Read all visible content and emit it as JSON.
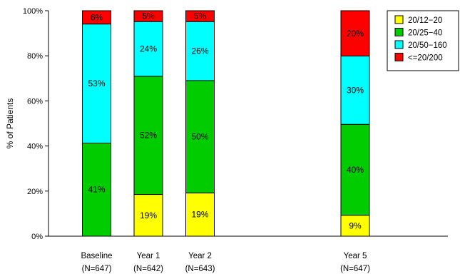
{
  "chart_data": {
    "type": "bar",
    "stacked": true,
    "ylabel": "% of Patients",
    "ylim": [
      0,
      100
    ],
    "y_ticks": [
      "0%",
      "20%",
      "40%",
      "60%",
      "80%",
      "100%"
    ],
    "grid": false,
    "legend_position": "top-right",
    "categories": [
      {
        "name": "Baseline",
        "sub": "(N=647)",
        "year": 0
      },
      {
        "name": "Year 1",
        "sub": "(N=642)",
        "year": 1
      },
      {
        "name": "Year 2",
        "sub": "(N=643)",
        "year": 2
      },
      {
        "name": "Year 5",
        "sub": "(N=647)",
        "year": 5
      }
    ],
    "series": [
      {
        "name": "20/12−20",
        "color": "#ffff00",
        "values": [
          0,
          18.5,
          19.2,
          9.3
        ],
        "labels": [
          "",
          "19%",
          "19%",
          "9%"
        ]
      },
      {
        "name": "20/25−40",
        "color": "#00cc00",
        "values": [
          41.3,
          52.4,
          49.8,
          40.3
        ],
        "labels": [
          "41%",
          "52%",
          "50%",
          "40%"
        ]
      },
      {
        "name": "20/50−160",
        "color": "#00ffff",
        "values": [
          52.8,
          24.3,
          26.2,
          30.3
        ],
        "labels": [
          "53%",
          "24%",
          "26%",
          "30%"
        ]
      },
      {
        "name": "<=20/200",
        "color": "#ff0000",
        "values": [
          5.9,
          4.8,
          4.8,
          20.1
        ],
        "labels": [
          "6%",
          "5%",
          "5%",
          "20%"
        ]
      }
    ]
  }
}
